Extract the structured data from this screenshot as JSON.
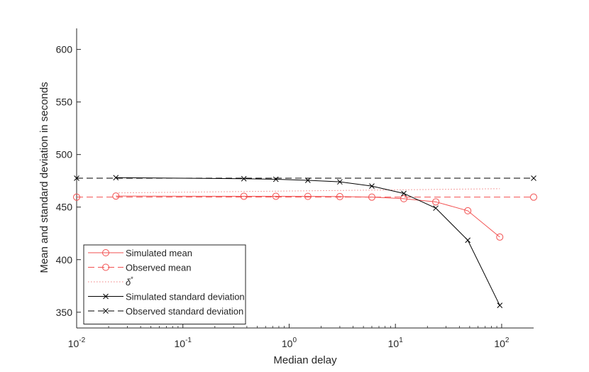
{
  "chart_data": {
    "type": "line",
    "title": "",
    "xlabel": "Median delay",
    "ylabel": "Mean and standard deviation in seconds",
    "x_scale": "log",
    "xlim": [
      0.01,
      200
    ],
    "ylim": [
      335,
      620
    ],
    "grid": false,
    "legend_position": "bottom-left",
    "x_ticks": [
      {
        "value": 0.01,
        "base": "10",
        "exp": "-2"
      },
      {
        "value": 0.1,
        "base": "10",
        "exp": "-1"
      },
      {
        "value": 1,
        "base": "10",
        "exp": "0"
      },
      {
        "value": 10,
        "base": "10",
        "exp": "1"
      },
      {
        "value": 100,
        "base": "10",
        "exp": "2"
      }
    ],
    "y_ticks": [
      350,
      400,
      450,
      500,
      550,
      600
    ],
    "y_tick_labels": [
      "350",
      "400",
      "450",
      "500",
      "550",
      "600"
    ],
    "series": [
      {
        "name": "Simulated mean",
        "color": "#f25050",
        "line": "solid",
        "marker": "circle",
        "x": [
          0.0234,
          0.375,
          0.75,
          1.5,
          3,
          6,
          12,
          24,
          48,
          96
        ],
        "y": [
          460.5,
          460.3,
          460.3,
          460.2,
          460,
          459.5,
          458,
          455,
          446.5,
          421.5
        ]
      },
      {
        "name": "Observed mean",
        "color": "#f25050",
        "line": "dashed",
        "marker": "circle",
        "x": [
          0.01,
          200
        ],
        "y": [
          459.5,
          459.5
        ]
      },
      {
        "name": "δ*",
        "name_base": "δ",
        "name_sup": "*",
        "color": "#f08080",
        "line": "dotted",
        "marker": "none",
        "x": [
          0.0234,
          96
        ],
        "y": [
          463.5,
          467.5
        ]
      },
      {
        "name": "Simulated standard deviation",
        "color": "#000000",
        "line": "solid",
        "marker": "x",
        "x": [
          0.0234,
          0.375,
          0.75,
          1.5,
          3,
          6,
          12,
          24,
          48,
          96
        ],
        "y": [
          478,
          477,
          476.5,
          475.5,
          474,
          470,
          463,
          449,
          418.5,
          356.5
        ]
      },
      {
        "name": "Observed standard deviation",
        "color": "#000000",
        "line": "dashed",
        "marker": "x",
        "x": [
          0.01,
          200
        ],
        "y": [
          477.5,
          477.5
        ]
      }
    ]
  }
}
